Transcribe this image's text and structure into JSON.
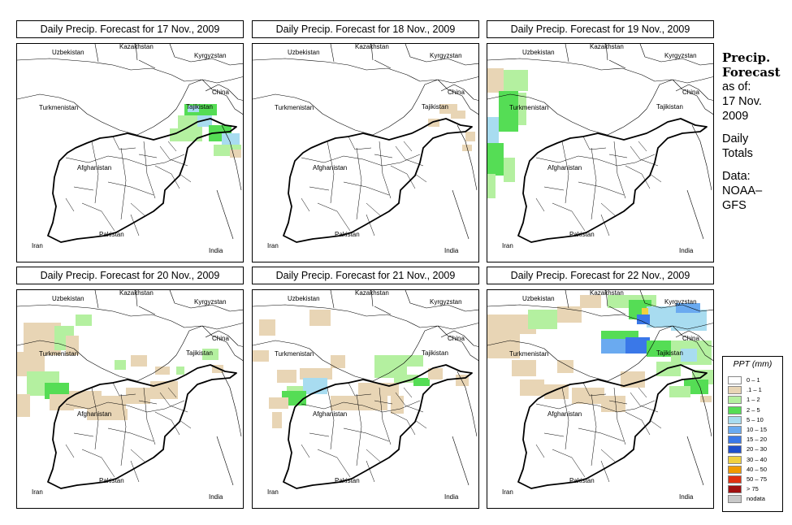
{
  "panels": [
    {
      "title": "Daily Precip. Forecast for  17 Nov., 2009"
    },
    {
      "title": "Daily Precip. Forecast for  18 Nov., 2009"
    },
    {
      "title": "Daily Precip. Forecast for  19 Nov., 2009"
    },
    {
      "title": "Daily Precip. Forecast for  20 Nov., 2009"
    },
    {
      "title": "Daily Precip. Forecast for  21 Nov., 2009"
    },
    {
      "title": "Daily Precip. Forecast for  22 Nov., 2009"
    }
  ],
  "countries": {
    "uzbekistan": "Uzbekistan",
    "kazakhstan": "Kazakhstan",
    "kyrgyzstan": "Kyrgyzstan",
    "china": "China",
    "turkmenistan": "Turkmenistan",
    "tajikistan": "Tajikistan",
    "afghanistan": "Afghanistan",
    "iran": "Iran",
    "pakistan": "Pakistan",
    "india": "India"
  },
  "sidebar": {
    "title_line1": "Precip.",
    "title_line2": "Forecast",
    "asof": "as of:",
    "date_line1": "17 Nov.",
    "date_line2": "2009",
    "totals_line1": "Daily",
    "totals_line2": "Totals",
    "data_line1": "Data:",
    "data_line2": "NOAA–",
    "data_line3": "GFS"
  },
  "legend": {
    "title": "PPT (mm)",
    "items": [
      {
        "label": "0 – 1",
        "color": "#ffffff"
      },
      {
        "label": ".1 – 1",
        "color": "#e8d5b5"
      },
      {
        "label": "1 – 2",
        "color": "#b4f0a0"
      },
      {
        "label": "2 – 5",
        "color": "#55dd55"
      },
      {
        "label": "5 – 10",
        "color": "#a8dcf0"
      },
      {
        "label": "10 – 15",
        "color": "#6aaaf0"
      },
      {
        "label": "15 – 20",
        "color": "#3a78e8"
      },
      {
        "label": "20 – 30",
        "color": "#1f4fcc"
      },
      {
        "label": "30 – 40",
        "color": "#f0d040"
      },
      {
        "label": "40 – 50",
        "color": "#f09a00"
      },
      {
        "label": "50 – 75",
        "color": "#e03010"
      },
      {
        "label": "> 75",
        "color": "#a01010"
      },
      {
        "label": "nodata",
        "color": "#c8c8c8"
      }
    ]
  }
}
